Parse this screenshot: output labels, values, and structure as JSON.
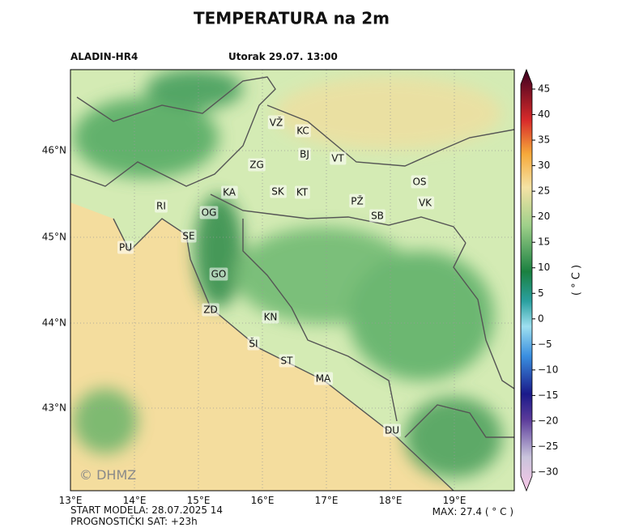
{
  "title": "TEMPERATURA na 2m",
  "model": "ALADIN-HR4",
  "valid_time": "Utorak 29.07. 13:00",
  "lat_labels": [
    "46°N",
    "45°N",
    "44°N",
    "43°N"
  ],
  "lon_labels": [
    "13°E",
    "14°E",
    "15°E",
    "16°E",
    "17°E",
    "18°E",
    "19°E"
  ],
  "places": [
    "VŽ",
    "KC",
    "BJ",
    "VT",
    "ZG",
    "OS",
    "KA",
    "SK",
    "KT",
    "PŽ",
    "VK",
    "RI",
    "OG",
    "SB",
    "SE",
    "PU",
    "GO",
    "ZD",
    "KN",
    "ŠI",
    "ST",
    "MA",
    "DU"
  ],
  "watermark": "© DHMZ",
  "colorbar": {
    "label": "( ° C )",
    "ticks": [
      45,
      40,
      35,
      30,
      25,
      20,
      15,
      10,
      5,
      0,
      {
        "value": -5,
        "label": "−5"
      },
      {
        "value": -10,
        "label": "−10"
      },
      {
        "value": -15,
        "label": "−15"
      },
      {
        "value": -20,
        "label": "−20"
      },
      {
        "value": -25,
        "label": "−25"
      },
      {
        "value": -30,
        "label": "−30"
      }
    ]
  },
  "footer": {
    "start": "START MODELA: 28.07.2025 14",
    "forecast_hour": "PROGNOSTIČKI SAT: +23h",
    "max": "MAX: 27.4 ( ° C )"
  }
}
